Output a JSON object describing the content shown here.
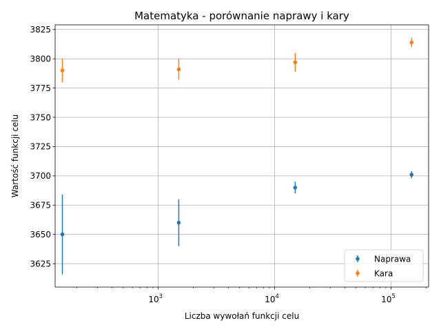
{
  "chart_data": {
    "type": "scatter",
    "title": "Matematyka - porównanie naprawy i kary",
    "xlabel": "Liczba wywołań funkcji celu",
    "ylabel": "Wartość funkcji celu",
    "x_scale": "log",
    "xlim": [
      130,
      210000
    ],
    "ylim": [
      3605,
      3829
    ],
    "x_ticks": [
      {
        "value": 1000,
        "base": "10",
        "exp": "3"
      },
      {
        "value": 10000,
        "base": "10",
        "exp": "4"
      },
      {
        "value": 100000,
        "base": "10",
        "exp": "5"
      }
    ],
    "y_ticks": [
      3625,
      3650,
      3675,
      3700,
      3725,
      3750,
      3775,
      3800,
      3825
    ],
    "grid": true,
    "legend_position": "lower right",
    "series": [
      {
        "name": "Naprawa",
        "color": "#1f77b4",
        "x": [
          150,
          1500,
          15000,
          150000
        ],
        "y": [
          3650,
          3660,
          3690,
          3701
        ],
        "yerr": [
          34,
          20,
          5,
          3
        ]
      },
      {
        "name": "Kara",
        "color": "#ff7f0e",
        "x": [
          150,
          1500,
          15000,
          150000
        ],
        "y": [
          3790,
          3791,
          3797,
          3814
        ],
        "yerr": [
          10,
          9,
          8,
          4
        ]
      }
    ]
  }
}
